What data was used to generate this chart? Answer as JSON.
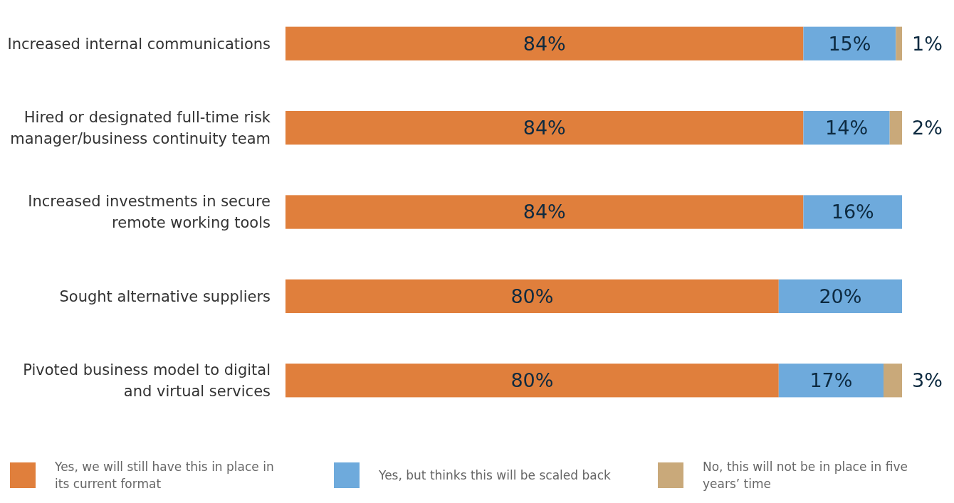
{
  "chart_data": {
    "type": "bar",
    "orientation": "horizontal",
    "stacked": true,
    "legend": "bottom",
    "categories": [
      "Increased internal communications",
      "Hired or designated full-time risk manager/business continuity team",
      "Increased investments in secure remote working tools",
      "Sought alternative suppliers",
      "Pivoted business model to digital and virtual services"
    ],
    "series": [
      {
        "name": "Yes, we will still have this in place in its current format",
        "color": "#e07f3c",
        "values": [
          84,
          84,
          84,
          80,
          80
        ],
        "value_labels": [
          "84%",
          "84%",
          "84%",
          "80%",
          "80%"
        ]
      },
      {
        "name": "Yes, but thinks this will be scaled back",
        "color": "#6eaadc",
        "values": [
          15,
          14,
          16,
          20,
          17
        ],
        "value_labels": [
          "15%",
          "14%",
          "16%",
          "20%",
          "17%"
        ]
      },
      {
        "name": "No, this will not be in place in five years’ time",
        "color": "#c9a97a",
        "values": [
          1,
          2,
          null,
          null,
          3
        ],
        "value_labels": [
          "1%",
          "2%",
          null,
          null,
          "3%"
        ]
      }
    ]
  }
}
